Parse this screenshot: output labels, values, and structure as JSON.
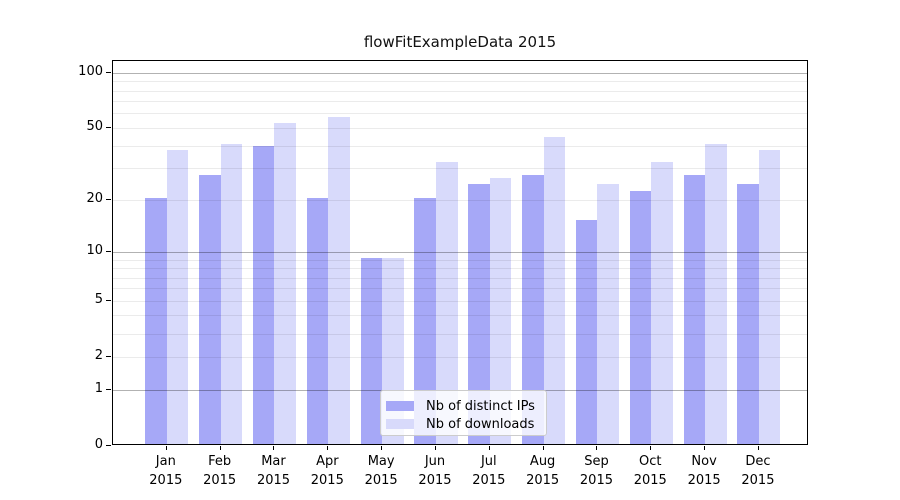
{
  "chart_data": {
    "type": "bar",
    "title": "flowFitExampleData 2015",
    "categories": [
      "Jan 2015",
      "Feb 2015",
      "Mar 2015",
      "Apr 2015",
      "May 2015",
      "Jun 2015",
      "Jul 2015",
      "Aug 2015",
      "Sep 2015",
      "Oct 2015",
      "Nov 2015",
      "Dec 2015"
    ],
    "series": [
      {
        "name": "Nb of distinct IPs",
        "color": "#a6a8f7",
        "values": [
          20,
          27,
          39,
          20,
          9,
          20,
          24,
          27,
          15,
          22,
          27,
          24
        ]
      },
      {
        "name": "Nb of downloads",
        "color": "#d8dafb",
        "values": [
          37,
          40,
          52,
          56,
          9,
          32,
          26,
          44,
          24,
          32,
          40,
          37
        ]
      }
    ],
    "yscale": "log1p",
    "ylim": [
      0,
      116
    ],
    "yticks": [
      100,
      50,
      20,
      10,
      5,
      2,
      1,
      0
    ],
    "major_gridlines": [
      1,
      10,
      100
    ],
    "minor_gridlines": [
      2,
      3,
      4,
      5,
      6,
      7,
      8,
      9,
      20,
      30,
      40,
      50,
      60,
      70,
      80,
      90
    ],
    "grid": "horizontal",
    "legend_position": "lower center",
    "axis_color": "#000000",
    "background": "#ffffff"
  }
}
